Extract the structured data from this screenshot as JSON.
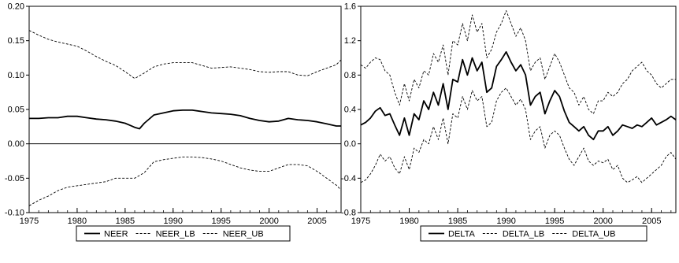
{
  "chart_data": [
    {
      "type": "line",
      "x_ticks": [
        "1975",
        "1980",
        "1985",
        "1990",
        "1995",
        "2000",
        "2005"
      ],
      "xlim": [
        1975,
        2007.5
      ],
      "ylim": [
        -0.1,
        0.2
      ],
      "y_ticks": [
        "0.20",
        "0.15",
        "0.10",
        "0.05",
        "0.00",
        "-0.05",
        "-0.10"
      ],
      "y_tick_values": [
        0.2,
        0.15,
        0.1,
        0.05,
        0.0,
        -0.05,
        -0.1
      ],
      "zero_line": 0.0,
      "grid": false,
      "legend_position": "bottom-center",
      "series": [
        {
          "name": "NEER",
          "style": "solid",
          "x": [
            1975,
            1976,
            1977,
            1978,
            1979,
            1980,
            1981,
            1982,
            1983,
            1984,
            1985,
            1985.5,
            1986,
            1986.5,
            1987,
            1988,
            1989,
            1990,
            1991,
            1992,
            1993,
            1994,
            1995,
            1996,
            1997,
            1998,
            1999,
            2000,
            2001,
            2002,
            2003,
            2004,
            2005,
            2006,
            2007,
            2007.5
          ],
          "values": [
            0.037,
            0.037,
            0.038,
            0.038,
            0.04,
            0.04,
            0.038,
            0.036,
            0.035,
            0.033,
            0.03,
            0.027,
            0.024,
            0.022,
            0.03,
            0.042,
            0.045,
            0.048,
            0.049,
            0.049,
            0.047,
            0.045,
            0.044,
            0.043,
            0.041,
            0.037,
            0.034,
            0.032,
            0.033,
            0.037,
            0.035,
            0.034,
            0.032,
            0.029,
            0.026,
            0.026
          ]
        },
        {
          "name": "NEER_LB",
          "style": "dashed",
          "x": [
            1975,
            1976,
            1977,
            1978,
            1979,
            1980,
            1981,
            1982,
            1983,
            1984,
            1985,
            1986,
            1987,
            1988,
            1989,
            1990,
            1991,
            1992,
            1993,
            1994,
            1995,
            1996,
            1997,
            1998,
            1999,
            2000,
            2001,
            2002,
            2003,
            2004,
            2005,
            2006,
            2007,
            2007.5
          ],
          "values": [
            -0.09,
            -0.082,
            -0.076,
            -0.068,
            -0.063,
            -0.061,
            -0.059,
            -0.057,
            -0.055,
            -0.05,
            -0.05,
            -0.05,
            -0.042,
            -0.026,
            -0.023,
            -0.021,
            -0.019,
            -0.019,
            -0.02,
            -0.022,
            -0.025,
            -0.03,
            -0.035,
            -0.038,
            -0.04,
            -0.04,
            -0.035,
            -0.03,
            -0.03,
            -0.032,
            -0.04,
            -0.05,
            -0.06,
            -0.067
          ]
        },
        {
          "name": "NEER_UB",
          "style": "dashed",
          "x": [
            1975,
            1976,
            1977,
            1978,
            1979,
            1980,
            1981,
            1982,
            1983,
            1984,
            1985,
            1986,
            1987,
            1988,
            1989,
            1990,
            1991,
            1992,
            1993,
            1994,
            1995,
            1996,
            1997,
            1998,
            1999,
            2000,
            2001,
            2002,
            2003,
            2004,
            2005,
            2006,
            2007,
            2007.5
          ],
          "values": [
            0.165,
            0.158,
            0.152,
            0.148,
            0.145,
            0.142,
            0.135,
            0.127,
            0.12,
            0.114,
            0.105,
            0.095,
            0.103,
            0.112,
            0.116,
            0.118,
            0.118,
            0.118,
            0.114,
            0.11,
            0.111,
            0.112,
            0.11,
            0.108,
            0.105,
            0.104,
            0.105,
            0.105,
            0.1,
            0.099,
            0.105,
            0.11,
            0.115,
            0.122
          ]
        }
      ]
    },
    {
      "type": "line",
      "x_ticks": [
        "1975",
        "1980",
        "1985",
        "1990",
        "1995",
        "2000",
        "2005"
      ],
      "xlim": [
        1975,
        2007.5
      ],
      "ylim": [
        -0.8,
        1.6
      ],
      "y_ticks": [
        "1.6",
        "1.2",
        "0.8",
        "0.4",
        "0.0",
        "-0.4",
        "-0.8"
      ],
      "y_tick_values": [
        1.6,
        1.2,
        0.8,
        0.4,
        0.0,
        -0.4,
        -0.8
      ],
      "grid": false,
      "legend_position": "bottom-center",
      "series": [
        {
          "name": "DELTA",
          "style": "solid",
          "x": [
            1975,
            1975.5,
            1976,
            1976.5,
            1977,
            1977.5,
            1978,
            1978.5,
            1979,
            1979.5,
            1980,
            1980.5,
            1981,
            1981.5,
            1982,
            1982.5,
            1983,
            1983.5,
            1984,
            1984.5,
            1985,
            1985.5,
            1986,
            1986.5,
            1987,
            1987.5,
            1988,
            1988.5,
            1989,
            1989.5,
            1990,
            1990.5,
            1991,
            1991.5,
            1992,
            1992.5,
            1993,
            1993.5,
            1994,
            1994.5,
            1995,
            1995.5,
            1996,
            1996.5,
            1997,
            1997.5,
            1998,
            1998.5,
            1999,
            1999.5,
            2000,
            2000.5,
            2001,
            2001.5,
            2002,
            2002.5,
            2003,
            2003.5,
            2004,
            2004.5,
            2005,
            2005.5,
            2006,
            2006.5,
            2007,
            2007.5
          ],
          "values": [
            0.22,
            0.25,
            0.3,
            0.38,
            0.42,
            0.33,
            0.35,
            0.22,
            0.1,
            0.3,
            0.1,
            0.35,
            0.28,
            0.5,
            0.4,
            0.6,
            0.45,
            0.7,
            0.4,
            0.75,
            0.72,
            0.98,
            0.8,
            1.0,
            0.85,
            0.95,
            0.6,
            0.65,
            0.9,
            0.98,
            1.07,
            0.95,
            0.85,
            0.92,
            0.8,
            0.45,
            0.55,
            0.6,
            0.35,
            0.5,
            0.62,
            0.55,
            0.38,
            0.25,
            0.2,
            0.15,
            0.2,
            0.1,
            0.05,
            0.15,
            0.15,
            0.2,
            0.1,
            0.15,
            0.22,
            0.2,
            0.18,
            0.22,
            0.2,
            0.25,
            0.3,
            0.22,
            0.25,
            0.28,
            0.32,
            0.28
          ]
        },
        {
          "name": "DELTA_LB",
          "style": "dashed",
          "x": [
            1975,
            1975.5,
            1976,
            1976.5,
            1977,
            1977.5,
            1978,
            1978.5,
            1979,
            1979.5,
            1980,
            1980.5,
            1981,
            1981.5,
            1982,
            1982.5,
            1983,
            1983.5,
            1984,
            1984.5,
            1985,
            1985.5,
            1986,
            1986.5,
            1987,
            1987.5,
            1988,
            1988.5,
            1989,
            1989.5,
            1990,
            1990.5,
            1991,
            1991.5,
            1992,
            1992.5,
            1993,
            1993.5,
            1994,
            1994.5,
            1995,
            1995.5,
            1996,
            1996.5,
            1997,
            1997.5,
            1998,
            1998.5,
            1999,
            1999.5,
            2000,
            2000.5,
            2001,
            2001.5,
            2002,
            2002.5,
            2003,
            2003.5,
            2004,
            2004.5,
            2005,
            2005.5,
            2006,
            2006.5,
            2007,
            2007.5
          ],
          "values": [
            -0.45,
            -0.42,
            -0.35,
            -0.25,
            -0.12,
            -0.2,
            -0.15,
            -0.28,
            -0.35,
            -0.15,
            -0.3,
            -0.05,
            -0.1,
            0.05,
            0.0,
            0.2,
            0.05,
            0.3,
            0.0,
            0.35,
            0.3,
            0.55,
            0.4,
            0.62,
            0.5,
            0.55,
            0.2,
            0.25,
            0.5,
            0.6,
            0.65,
            0.55,
            0.45,
            0.52,
            0.4,
            0.05,
            0.15,
            0.2,
            -0.05,
            0.1,
            0.15,
            0.1,
            -0.05,
            -0.18,
            -0.25,
            -0.15,
            -0.05,
            -0.2,
            -0.25,
            -0.2,
            -0.22,
            -0.18,
            -0.3,
            -0.25,
            -0.4,
            -0.45,
            -0.42,
            -0.38,
            -0.45,
            -0.4,
            -0.35,
            -0.3,
            -0.25,
            -0.15,
            -0.1,
            -0.18
          ]
        },
        {
          "name": "DELTA_UB",
          "style": "dashed",
          "x": [
            1975,
            1975.5,
            1976,
            1976.5,
            1977,
            1977.5,
            1978,
            1978.5,
            1979,
            1979.5,
            1980,
            1980.5,
            1981,
            1981.5,
            1982,
            1982.5,
            1983,
            1983.5,
            1984,
            1984.5,
            1985,
            1985.5,
            1986,
            1986.5,
            1987,
            1987.5,
            1988,
            1988.5,
            1989,
            1989.5,
            1990,
            1990.5,
            1991,
            1991.5,
            1992,
            1992.5,
            1993,
            1993.5,
            1994,
            1994.5,
            1995,
            1995.5,
            1996,
            1996.5,
            1997,
            1997.5,
            1998,
            1998.5,
            1999,
            1999.5,
            2000,
            2000.5,
            2001,
            2001.5,
            2002,
            2002.5,
            2003,
            2003.5,
            2004,
            2004.5,
            2005,
            2005.5,
            2006,
            2006.5,
            2007,
            2007.5
          ],
          "values": [
            0.92,
            0.88,
            0.95,
            1.0,
            0.98,
            0.85,
            0.8,
            0.6,
            0.45,
            0.7,
            0.5,
            0.75,
            0.65,
            0.85,
            0.8,
            1.05,
            0.95,
            1.15,
            0.8,
            1.2,
            1.15,
            1.4,
            1.2,
            1.5,
            1.3,
            1.4,
            1.0,
            1.1,
            1.3,
            1.4,
            1.55,
            1.4,
            1.25,
            1.35,
            1.2,
            0.85,
            0.95,
            1.0,
            0.75,
            0.9,
            1.05,
            0.95,
            0.8,
            0.65,
            0.6,
            0.45,
            0.55,
            0.4,
            0.35,
            0.5,
            0.5,
            0.6,
            0.55,
            0.6,
            0.7,
            0.75,
            0.85,
            0.9,
            0.95,
            0.85,
            0.8,
            0.7,
            0.65,
            0.7,
            0.75,
            0.75
          ]
        }
      ]
    }
  ]
}
